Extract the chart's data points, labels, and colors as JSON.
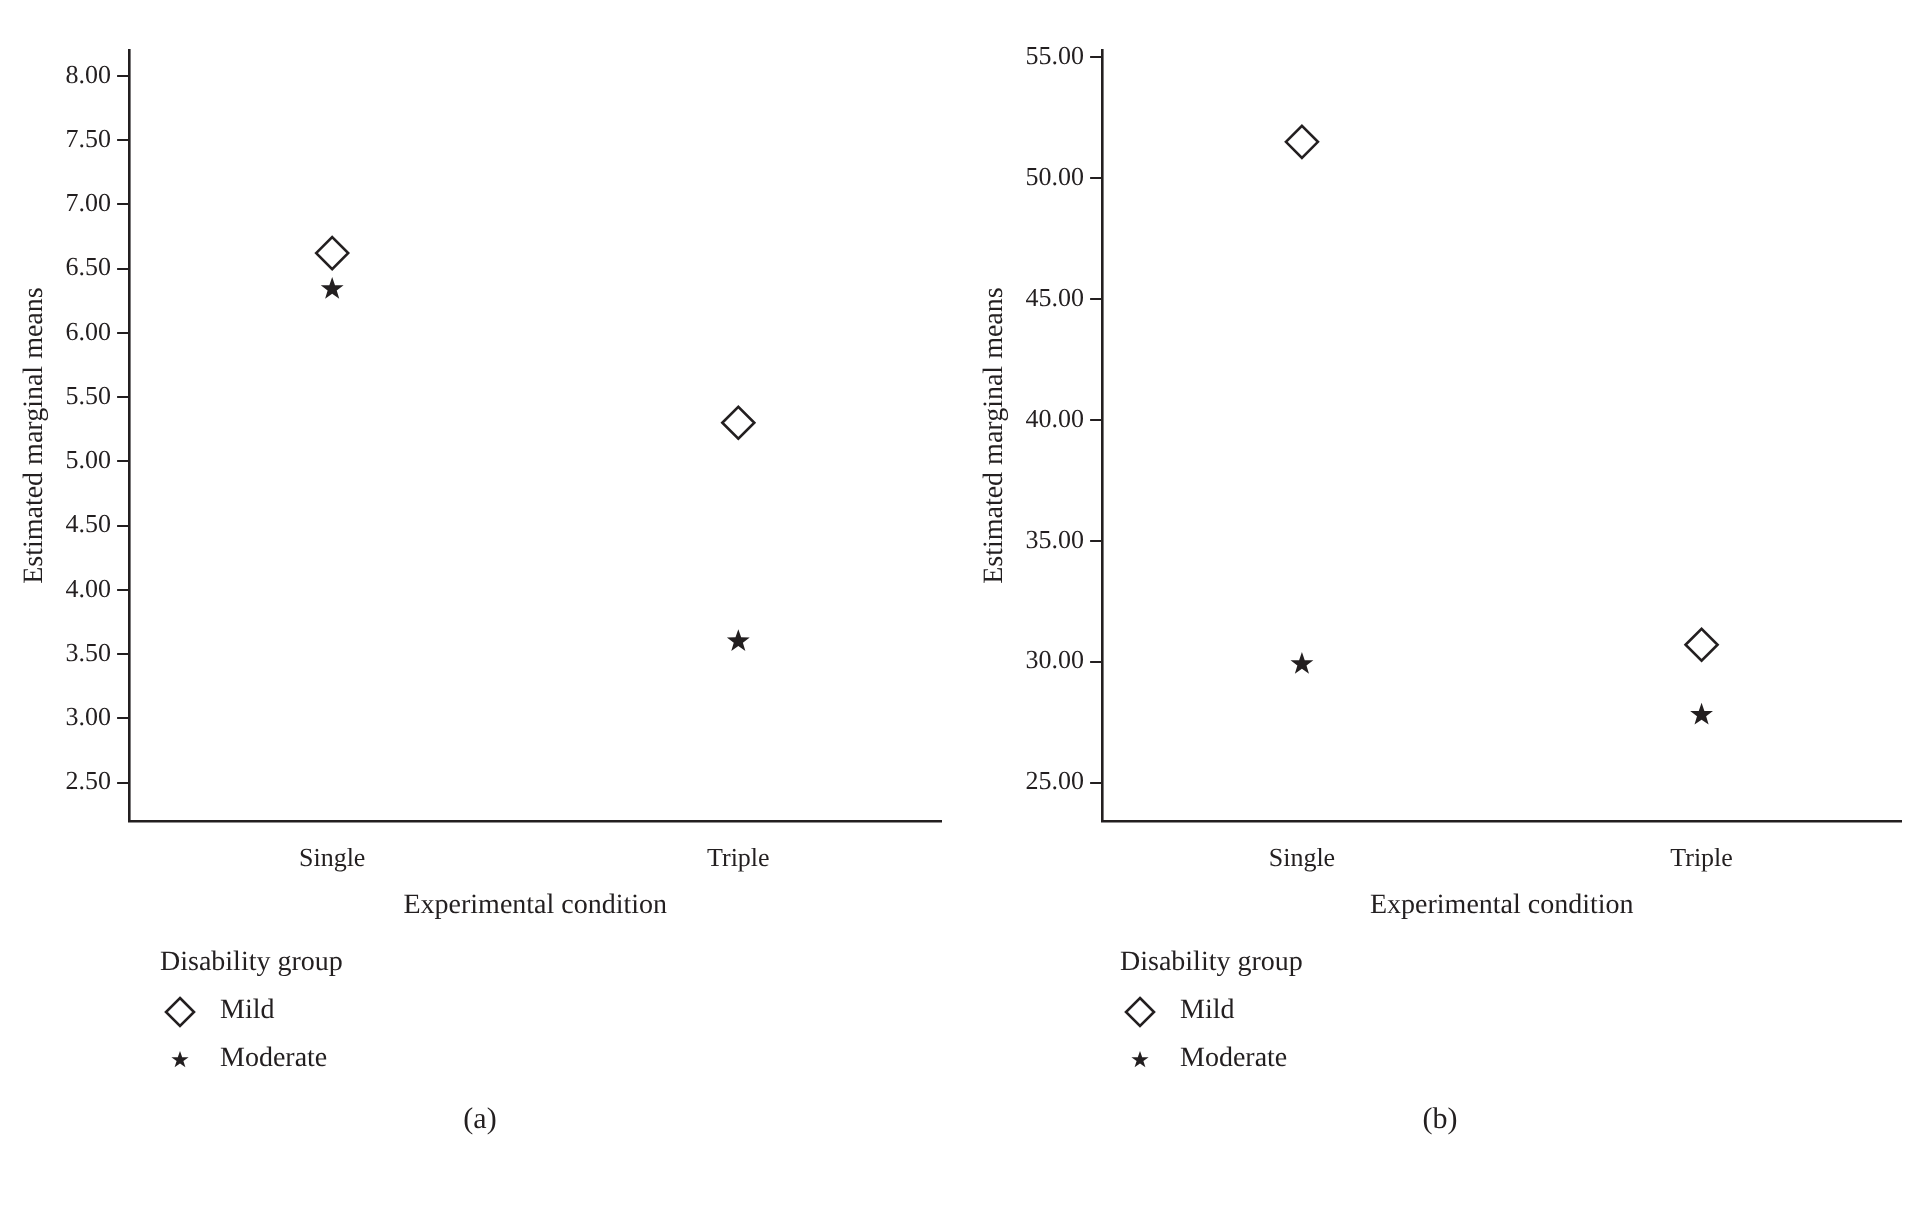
{
  "chart_data": [
    {
      "type": "scatter",
      "xlabel": "Experimental condition",
      "ylabel": "Estimated marginal means",
      "legend_title": "Disability group",
      "legend": "bottom left",
      "grid": false,
      "categories": [
        "Single",
        "Triple"
      ],
      "ylim": [
        2.2,
        8.2
      ],
      "yticks": [
        {
          "value": 2.5,
          "label": "2.50"
        },
        {
          "value": 3,
          "label": "3.00"
        },
        {
          "value": 3.5,
          "label": "3.50"
        },
        {
          "value": 4,
          "label": "4.00"
        },
        {
          "value": 4.5,
          "label": "4.50"
        },
        {
          "value": 5,
          "label": "5.00"
        },
        {
          "value": 5.5,
          "label": "5.50"
        },
        {
          "value": 6,
          "label": "6.00"
        },
        {
          "value": 6.5,
          "label": "6.50"
        },
        {
          "value": 7,
          "label": "7.00"
        },
        {
          "value": 7.5,
          "label": "7.50"
        },
        {
          "value": 8,
          "label": "8.00"
        }
      ],
      "series": [
        {
          "name": "Mild",
          "color": "#231f20",
          "marker": "diamond",
          "values": [
            6.62,
            5.3
          ]
        },
        {
          "name": "Moderate",
          "color": "#231f20",
          "marker": "star",
          "values": [
            6.34,
            3.6
          ]
        }
      ],
      "annotations": [
        "(a)"
      ]
    },
    {
      "type": "scatter",
      "xlabel": "Experimental condition",
      "ylabel": "Estimated marginal means",
      "legend_title": "Disability group",
      "legend": "bottom left",
      "grid": false,
      "categories": [
        "Single",
        "Triple"
      ],
      "ylim": [
        23.4,
        55.3
      ],
      "yticks": [
        {
          "value": 25,
          "label": "25.00"
        },
        {
          "value": 30,
          "label": "30.00"
        },
        {
          "value": 35,
          "label": "35.00"
        },
        {
          "value": 40,
          "label": "40.00"
        },
        {
          "value": 45,
          "label": "45.00"
        },
        {
          "value": 50,
          "label": "50.00"
        },
        {
          "value": 55,
          "label": "55.00"
        }
      ],
      "series": [
        {
          "name": "Mild",
          "color": "#231f20",
          "marker": "diamond",
          "values": [
            51.5,
            30.7
          ]
        },
        {
          "name": "Moderate",
          "color": "#231f20",
          "marker": "star",
          "values": [
            29.9,
            27.8
          ]
        }
      ],
      "annotations": [
        "(b)"
      ]
    }
  ]
}
